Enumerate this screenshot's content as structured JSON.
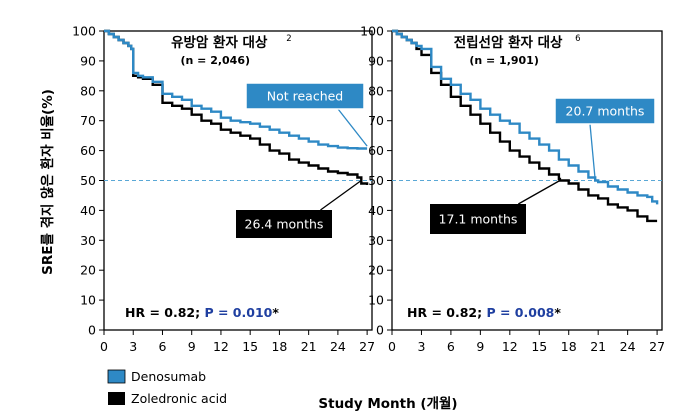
{
  "chart_data": {
    "type": "line",
    "ylabel": "SRE를 겪지 않은 환자 비율(%)",
    "xlabel": "Study Month (개월)",
    "ylim": [
      0,
      100
    ],
    "yticks": [
      "0",
      "10",
      "20",
      "30",
      "40",
      "50",
      "60",
      "70",
      "80",
      "90",
      "100"
    ],
    "reference_line": 50,
    "legend": {
      "placement": "bottom-left",
      "entries": [
        "Denosumab",
        "Zoledronic acid"
      ]
    },
    "colors": {
      "denosumab": "#2e89c5",
      "zoledronic": "#000000",
      "reference": "#5aa8d6",
      "p_value": "#1f3fa0"
    },
    "panels": [
      {
        "title": "유방암 환자 대상",
        "title_sup": "2",
        "subtitle": "(n = 2,046)",
        "xlim": [
          0,
          27.5
        ],
        "xticks": [
          "0",
          "3",
          "6",
          "9",
          "12",
          "15",
          "18",
          "21",
          "24",
          "27"
        ],
        "callouts": {
          "denosumab": "Not reached",
          "zoledronic": "26.4 months"
        },
        "hr_prefix": "HR = 0.82; ",
        "p_label": "P = 0.010",
        "suffix": "*",
        "series": [
          {
            "name": "Denosumab",
            "x": [
              0,
              0.5,
              1,
              1.5,
              2,
              2.5,
              2.8,
              3,
              3.5,
              4,
              5,
              6,
              7,
              8,
              9,
              10,
              11,
              12,
              13,
              14,
              15,
              16,
              17,
              18,
              19,
              20,
              21,
              22,
              23,
              24,
              25,
              26,
              27
            ],
            "values": [
              100,
              99,
              98,
              97,
              96,
              95,
              94,
              86,
              85,
              84.5,
              83,
              79,
              78,
              77,
              75,
              74,
              73,
              71,
              70,
              69.5,
              69,
              68,
              67,
              66,
              65,
              64,
              63,
              62,
              61.5,
              61,
              60.8,
              60.7,
              60.7
            ]
          },
          {
            "name": "Zoledronic acid",
            "x": [
              0,
              0.5,
              1,
              1.5,
              2,
              2.5,
              2.8,
              3,
              3.5,
              4,
              5,
              6,
              7,
              8,
              9,
              10,
              11,
              12,
              13,
              14,
              15,
              16,
              17,
              18,
              19,
              20,
              21,
              22,
              23,
              24,
              25,
              26,
              26.4,
              27
            ],
            "values": [
              100,
              99,
              98,
              97,
              96,
              95,
              94,
              85,
              84.5,
              84,
              82,
              76,
              75,
              74,
              72,
              70,
              69,
              67,
              66,
              65,
              64,
              62,
              60,
              59,
              57,
              56,
              55,
              54,
              53,
              52.5,
              52,
              51,
              49,
              48.5
            ]
          }
        ]
      },
      {
        "title": "전립선암 환자 대상",
        "title_sup": "6",
        "subtitle": "(n = 1,901)",
        "xlim": [
          0,
          27.5
        ],
        "xticks": [
          "0",
          "3",
          "6",
          "9",
          "12",
          "15",
          "18",
          "21",
          "24",
          "27"
        ],
        "callouts": {
          "denosumab": "20.7 months",
          "zoledronic": "17.1 months"
        },
        "hr_prefix": "HR = 0.82; ",
        "p_label": "P = 0.008",
        "suffix": "*",
        "series": [
          {
            "name": "Denosumab",
            "x": [
              0,
              0.5,
              1,
              1.5,
              2,
              2.5,
              3,
              4,
              5,
              6,
              7,
              8,
              9,
              10,
              11,
              12,
              13,
              14,
              15,
              16,
              17,
              18,
              19,
              20,
              20.7,
              21,
              22,
              23,
              24,
              25,
              26,
              26.5,
              27
            ],
            "values": [
              100,
              99,
              98,
              97,
              96,
              95,
              94,
              88,
              84,
              82,
              79,
              77,
              74,
              72,
              70,
              69,
              66,
              64,
              62,
              60,
              57,
              55,
              53,
              51,
              50,
              49.5,
              48,
              47,
              46,
              45,
              44.5,
              43,
              42
            ]
          },
          {
            "name": "Zoledronic acid",
            "x": [
              0,
              0.5,
              1,
              1.5,
              2,
              2.5,
              3,
              4,
              5,
              6,
              7,
              8,
              9,
              10,
              11,
              12,
              13,
              14,
              15,
              16,
              17,
              17.1,
              18,
              19,
              20,
              21,
              22,
              23,
              24,
              25,
              26,
              27
            ],
            "values": [
              100,
              99,
              98,
              97,
              96,
              94,
              92,
              86,
              82,
              78,
              75,
              72,
              69,
              66,
              63,
              60,
              58,
              56,
              54,
              52,
              50.5,
              50,
              49,
              47,
              45,
              44,
              42,
              41,
              40,
              38,
              36.5,
              36.5
            ]
          }
        ]
      }
    ]
  }
}
